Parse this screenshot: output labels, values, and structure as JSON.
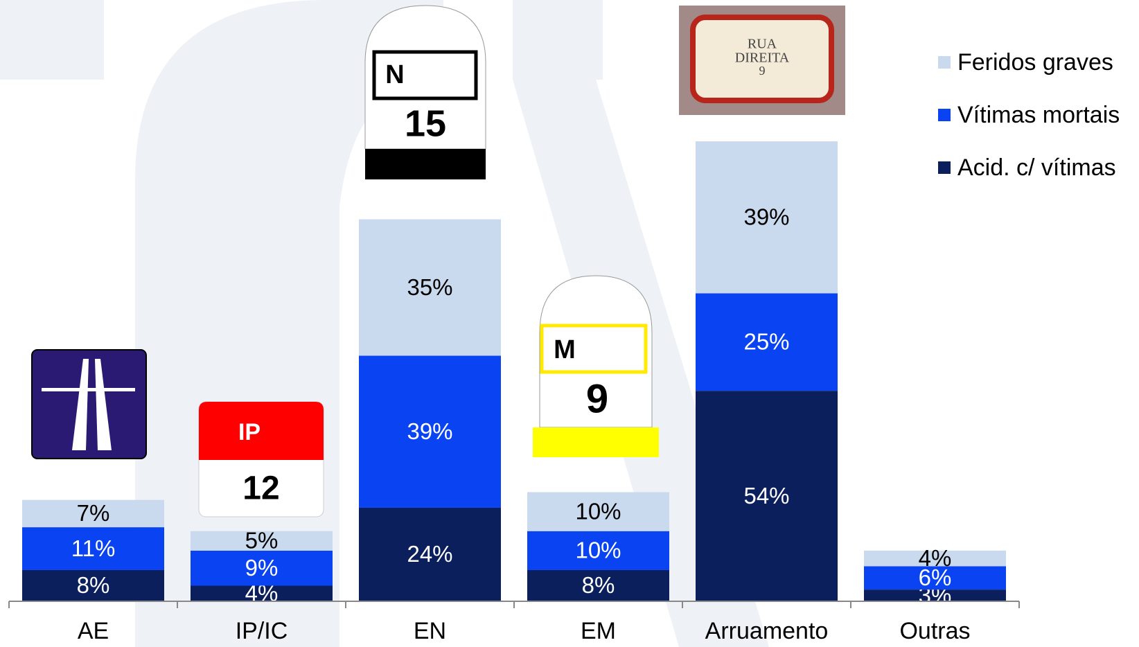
{
  "chart_data": {
    "type": "stacked_bar",
    "categories": [
      "AE",
      "IP/IC",
      "EN",
      "EM",
      "Arruamento",
      "Outras"
    ],
    "series": [
      {
        "name": "Acid. c/ vítimas",
        "color": "#0a1f5c",
        "values": [
          8,
          4,
          24,
          8,
          54,
          3
        ],
        "value_labels": [
          "8%",
          "4%",
          "24%",
          "8%",
          "54%",
          "3%"
        ]
      },
      {
        "name": "Vítimas mortais",
        "color": "#0a44f2",
        "values": [
          11,
          9,
          39,
          10,
          25,
          6
        ],
        "value_labels": [
          "11%",
          "9%",
          "39%",
          "10%",
          "25%",
          "6%"
        ]
      },
      {
        "name": "Feridos graves",
        "color": "#c9d9ee",
        "values": [
          7,
          5,
          35,
          10,
          39,
          4
        ],
        "value_labels": [
          "7%",
          "5%",
          "35%",
          "10%",
          "39%",
          "4%"
        ]
      }
    ],
    "ylim": [
      0,
      150
    ]
  }
}
